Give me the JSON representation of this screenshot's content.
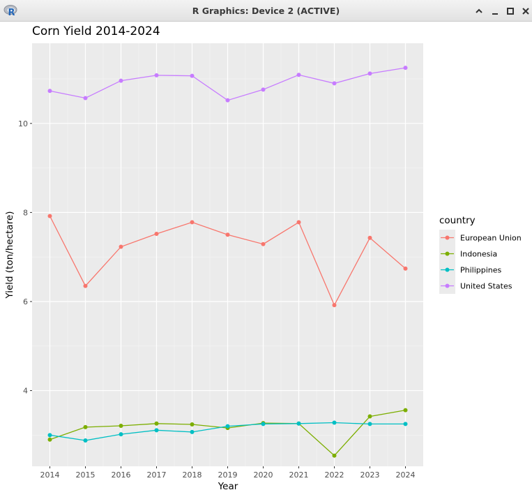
{
  "window": {
    "title": "R Graphics: Device 2 (ACTIVE)",
    "app_icon_letter": "R"
  },
  "chart_data": {
    "type": "line",
    "title": "Corn Yield 2014-2024",
    "xlabel": "Year",
    "ylabel": "Yield (ton/hectare)",
    "x": [
      2014,
      2015,
      2016,
      2017,
      2018,
      2019,
      2020,
      2021,
      2022,
      2023,
      2024
    ],
    "xlim": [
      2013.5,
      2024.5
    ],
    "ylim": [
      2.3,
      11.8
    ],
    "yticks": [
      4,
      6,
      8,
      10
    ],
    "grid": true,
    "legend_title": "country",
    "legend_position": "right",
    "series": [
      {
        "name": "European Union",
        "color": "#F8766D",
        "values": [
          7.92,
          6.35,
          7.23,
          7.52,
          7.78,
          7.5,
          7.29,
          7.78,
          5.92,
          7.43,
          6.74
        ]
      },
      {
        "name": "Indonesia",
        "color": "#7CAE00",
        "values": [
          2.9,
          3.18,
          3.21,
          3.26,
          3.24,
          3.16,
          3.27,
          3.26,
          2.54,
          3.42,
          3.56
        ]
      },
      {
        "name": "Philippines",
        "color": "#00BFC4",
        "values": [
          3.0,
          2.88,
          3.02,
          3.11,
          3.07,
          3.2,
          3.25,
          3.26,
          3.28,
          3.25,
          3.25
        ]
      },
      {
        "name": "United States",
        "color": "#C77CFF",
        "values": [
          10.73,
          10.57,
          10.96,
          11.08,
          11.07,
          10.52,
          10.76,
          11.09,
          10.9,
          11.12,
          11.25
        ]
      }
    ]
  }
}
